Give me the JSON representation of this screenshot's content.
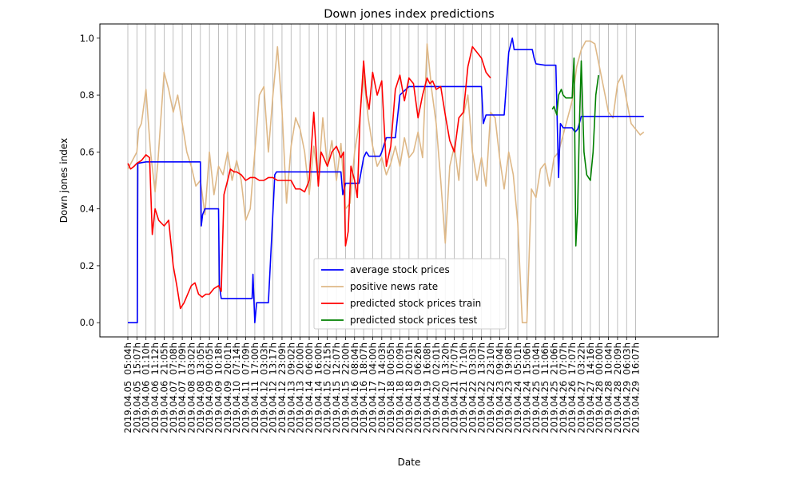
{
  "chart_data": {
    "type": "line",
    "title": "Down jones index predictions",
    "xlabel": "Date",
    "ylabel": "Down jones index",
    "ylim": [
      -0.05,
      1.05
    ],
    "yticks": [
      "0.0",
      "0.2",
      "0.4",
      "0.6",
      "0.8",
      "1.0"
    ],
    "grid": "vertical",
    "legend_position": "lower-center",
    "x_tick_labels": [
      "2019.04.05  05:04h",
      "2019.04.05  15:07h",
      "2019.04.06  01:10h",
      "2019.04.06  11:12h",
      "2019.04.06  21:05h",
      "2019.04.07  07:08h",
      "2019.04.07  17:09h",
      "2019.04.08  03:02h",
      "2019.04.08  13:05h",
      "2019.04.09  00:05h",
      "2019.04.09  10:18h",
      "2019.04.09  20:01h",
      "2019.04.10  07:14h",
      "2019.04.11  07:09h",
      "2019.04.11  17:00h",
      "2019.04.12  03:03h",
      "2019.04.12  13:17h",
      "2019.04.12  23:09h",
      "2019.04.13  09:02h",
      "2019.04.13  20:00h",
      "2019.04.14  06:00h",
      "2019.04.14  16:00h",
      "2019.04.15  02:15h",
      "2019.04.15  12:07h",
      "2019.04.15  22:00h",
      "2019.04.16  08:04h",
      "2019.04.16  18:07h",
      "2019.04.17  04:00h",
      "2019.04.17  14:03h",
      "2019.04.18  00:05h",
      "2019.04.18  10:09h",
      "2019.04.18  20:01h",
      "2019.04.19  06:26h",
      "2019.04.19  16:08h",
      "2019.04.20  02:01h",
      "2019.04.20  13:20h",
      "2019.04.21  07:07h",
      "2019.04.21  17:10h",
      "2019.04.22  03:03h",
      "2019.04.22  13:07h",
      "2019.04.22  23:10h",
      "2019.04.23  09:04h",
      "2019.04.23  19:08h",
      "2019.04.24  05:01h",
      "2019.04.24  15:06h",
      "2019.04.25  01:04h",
      "2019.04.25  11:06h",
      "2019.04.25  21:06h",
      "2019.04.26  07:07h",
      "2019.04.26  17:07h",
      "2019.04.27  03:22h",
      "2019.04.27  14:16h",
      "2019.04.28  00:00h",
      "2019.04.28  10:04h",
      "2019.04.28  20:09h",
      "2019.04.29  06:03h",
      "2019.04.29  16:07h"
    ],
    "series": [
      {
        "name": "average stock prices",
        "color": "#0000ff",
        "x": [
          0,
          1.05,
          1.1,
          2,
          3,
          4,
          5,
          6,
          7,
          8,
          8.1,
          8.25,
          8.5,
          8.7,
          8.9,
          9,
          10,
          10.1,
          10.3,
          10.5,
          10.7,
          11,
          12,
          13,
          13.7,
          13.8,
          14,
          14.2,
          14.5,
          15,
          15.5,
          16.1,
          16.2,
          16.4,
          16.6,
          17,
          18,
          19,
          20,
          21,
          22,
          23,
          23.5,
          23.7,
          24,
          25,
          25.5,
          26,
          26.3,
          26.6,
          27,
          27.8,
          28,
          28.5,
          29,
          29.5,
          30,
          31,
          31.3,
          31.6,
          32,
          33,
          34,
          35,
          36,
          37,
          38,
          39,
          39.2,
          39.5,
          40,
          41,
          41.5,
          42,
          42.4,
          42.6,
          43,
          44,
          44.6,
          44.8,
          45,
          46,
          47,
          47.2,
          47.5,
          47.7,
          48,
          48.2,
          49,
          49.3,
          49.6,
          50,
          51,
          52,
          53,
          54,
          55,
          56,
          56.9
        ],
        "values": [
          0,
          0,
          0.56,
          0.565,
          0.565,
          0.565,
          0.565,
          0.565,
          0.565,
          0.565,
          0.34,
          0.38,
          0.4,
          0.4,
          0.4,
          0.4,
          0.4,
          0.13,
          0.085,
          0.085,
          0.085,
          0.085,
          0.085,
          0.085,
          0.085,
          0.17,
          0,
          0.07,
          0.07,
          0.07,
          0.07,
          0.45,
          0.52,
          0.53,
          0.53,
          0.53,
          0.53,
          0.53,
          0.53,
          0.53,
          0.53,
          0.53,
          0.53,
          0.45,
          0.49,
          0.49,
          0.49,
          0.58,
          0.6,
          0.585,
          0.585,
          0.585,
          0.6,
          0.65,
          0.65,
          0.65,
          0.8,
          0.83,
          0.83,
          0.83,
          0.83,
          0.83,
          0.83,
          0.83,
          0.83,
          0.83,
          0.83,
          0.83,
          0.7,
          0.73,
          0.73,
          0.73,
          0.73,
          0.95,
          1,
          0.96,
          0.96,
          0.96,
          0.96,
          0.93,
          0.91,
          0.905,
          0.905,
          0.905,
          0.51,
          0.7,
          0.685,
          0.685,
          0.685,
          0.67,
          0.68,
          0.725,
          0.725,
          0.725,
          0.725,
          0.725,
          0.725,
          0.725,
          0.725
        ]
      },
      {
        "name": "positive news rate",
        "color": "#deb887",
        "x": [
          0,
          0.5,
          1,
          1.2,
          1.5,
          2,
          2.5,
          3,
          3.3,
          3.6,
          4,
          4.5,
          5,
          5.5,
          6,
          6.5,
          7,
          7.5,
          8,
          8.5,
          9,
          9.5,
          10,
          10.5,
          11,
          11.5,
          12,
          12.5,
          13,
          13.5,
          14,
          14.5,
          15,
          15.5,
          16,
          16.5,
          17,
          17.5,
          18,
          18.5,
          19,
          19.5,
          20,
          20.5,
          21,
          21.5,
          22,
          22.5,
          23,
          23.5,
          24,
          24.5,
          25,
          25.5,
          26,
          26.5,
          27,
          27.5,
          28,
          28.5,
          29,
          29.5,
          30,
          30.5,
          31,
          31.5,
          32,
          32.5,
          33,
          33.5,
          34,
          34.5,
          35,
          35.5,
          36,
          36.5,
          37,
          37.5,
          38,
          38.5,
          39,
          39.5,
          40,
          40.5,
          41,
          41.5,
          42,
          42.5,
          43,
          43.5,
          44,
          44.5,
          45,
          45.5,
          46,
          46.5,
          47,
          47.5,
          48,
          48.5,
          49,
          49.5,
          50,
          50.5,
          51,
          51.5,
          52,
          52.5,
          53,
          53.5,
          54,
          54.5,
          55,
          55.5,
          56,
          56.5,
          56.9
        ],
        "values": [
          0.54,
          0.57,
          0.6,
          0.68,
          0.7,
          0.82,
          0.6,
          0.46,
          0.56,
          0.7,
          0.88,
          0.82,
          0.74,
          0.8,
          0.7,
          0.6,
          0.55,
          0.48,
          0.5,
          0.38,
          0.6,
          0.45,
          0.55,
          0.52,
          0.6,
          0.5,
          0.57,
          0.5,
          0.36,
          0.4,
          0.6,
          0.8,
          0.83,
          0.6,
          0.8,
          0.97,
          0.75,
          0.42,
          0.62,
          0.72,
          0.68,
          0.6,
          0.45,
          0.62,
          0.5,
          0.72,
          0.55,
          0.64,
          0.5,
          0.63,
          0.4,
          0.42,
          0.6,
          0.7,
          0.87,
          0.72,
          0.62,
          0.55,
          0.58,
          0.52,
          0.56,
          0.62,
          0.55,
          0.65,
          0.58,
          0.6,
          0.67,
          0.58,
          0.98,
          0.82,
          0.7,
          0.5,
          0.28,
          0.55,
          0.62,
          0.5,
          0.73,
          0.8,
          0.6,
          0.5,
          0.58,
          0.48,
          0.74,
          0.72,
          0.58,
          0.47,
          0.6,
          0.52,
          0.35,
          0,
          0,
          0.47,
          0.44,
          0.54,
          0.56,
          0.48,
          0.58,
          0.6,
          0.66,
          0.72,
          0.78,
          0.9,
          0.96,
          0.99,
          0.99,
          0.98,
          0.9,
          0.82,
          0.74,
          0.72,
          0.84,
          0.87,
          0.78,
          0.7,
          0.68,
          0.66,
          0.67
        ]
      },
      {
        "name": "predicted stock prices train",
        "color": "#ff0000",
        "x": [
          0,
          0.3,
          0.7,
          1,
          1.5,
          2,
          2.4,
          2.7,
          3,
          3.4,
          4,
          4.5,
          5,
          5.4,
          5.8,
          6.2,
          6.6,
          7,
          7.4,
          7.8,
          8.2,
          8.6,
          9,
          9.5,
          10,
          10.3,
          10.6,
          11,
          11.3,
          11.7,
          12,
          12.5,
          13,
          13.5,
          14,
          14.5,
          15,
          15.5,
          16,
          16.5,
          17,
          17.5,
          18,
          18.5,
          19,
          19.5,
          20,
          20.5,
          21,
          21.3,
          21.6,
          22,
          22.5,
          23,
          23.5,
          23.8,
          24,
          24.3,
          24.6,
          25,
          25.3,
          25.6,
          26,
          26.3,
          26.6,
          27,
          27.5,
          28,
          28.5,
          29,
          29.5,
          30,
          30.5,
          31,
          31.5,
          32,
          32.5,
          33,
          33.3,
          33.6,
          34,
          34.5,
          35,
          35.5,
          36,
          36.5,
          37,
          37.5,
          38,
          38.5,
          39,
          39.5,
          40
        ],
        "values": [
          0.56,
          0.54,
          0.55,
          0.56,
          0.57,
          0.59,
          0.58,
          0.31,
          0.4,
          0.36,
          0.34,
          0.36,
          0.2,
          0.13,
          0.05,
          0.07,
          0.1,
          0.13,
          0.14,
          0.1,
          0.09,
          0.1,
          0.1,
          0.12,
          0.13,
          0.11,
          0.45,
          0.5,
          0.54,
          0.53,
          0.53,
          0.52,
          0.5,
          0.51,
          0.51,
          0.5,
          0.5,
          0.51,
          0.51,
          0.5,
          0.5,
          0.5,
          0.5,
          0.47,
          0.47,
          0.46,
          0.5,
          0.74,
          0.48,
          0.6,
          0.58,
          0.55,
          0.6,
          0.62,
          0.58,
          0.6,
          0.27,
          0.32,
          0.55,
          0.5,
          0.44,
          0.72,
          0.92,
          0.8,
          0.75,
          0.88,
          0.8,
          0.85,
          0.55,
          0.62,
          0.82,
          0.87,
          0.78,
          0.86,
          0.84,
          0.72,
          0.8,
          0.86,
          0.84,
          0.85,
          0.82,
          0.83,
          0.73,
          0.64,
          0.6,
          0.72,
          0.74,
          0.9,
          0.97,
          0.95,
          0.93,
          0.88,
          0.86
        ]
      },
      {
        "name": "predicted stock prices test",
        "color": "#008000",
        "x": [
          46.8,
          47,
          47.3,
          47.5,
          47.8,
          48,
          48.3,
          48.5,
          48.8,
          49,
          49.2,
          49.4,
          49.6,
          49.8,
          50,
          50.3,
          50.6,
          51,
          51.3,
          51.6,
          51.9
        ],
        "values": [
          0.75,
          0.76,
          0.73,
          0.8,
          0.82,
          0.8,
          0.79,
          0.79,
          0.79,
          0.79,
          0.93,
          0.27,
          0.4,
          0.7,
          0.92,
          0.6,
          0.52,
          0.5,
          0.6,
          0.8,
          0.87
        ]
      }
    ]
  }
}
